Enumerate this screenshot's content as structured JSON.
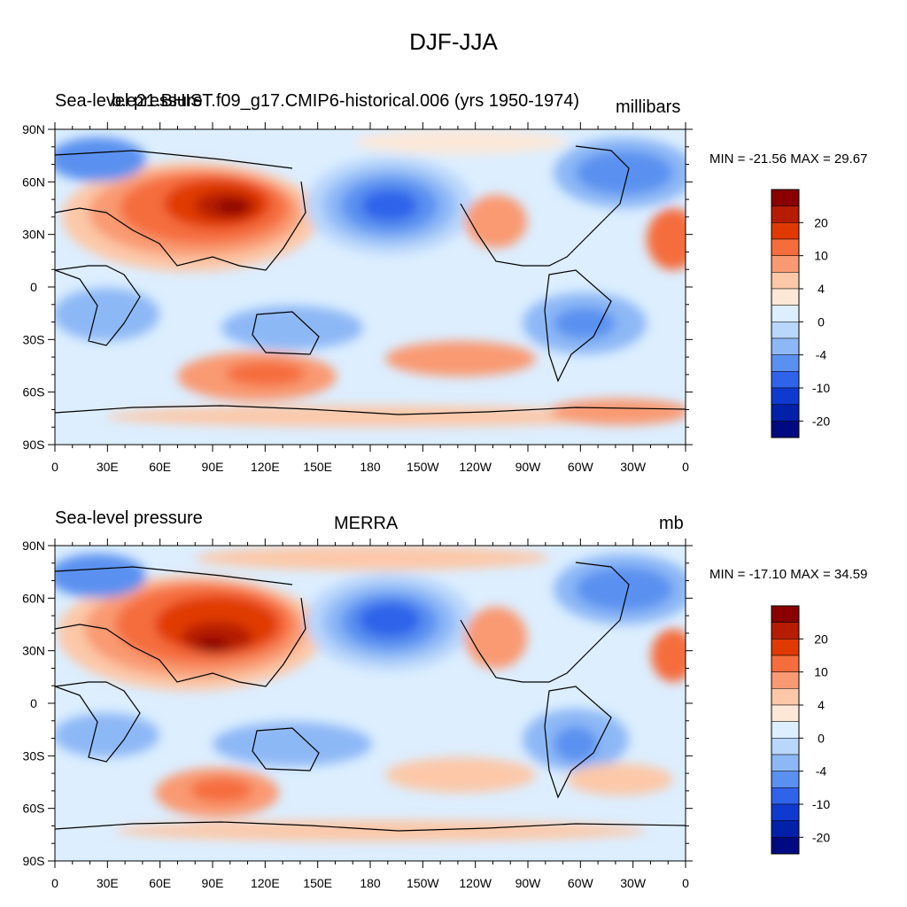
{
  "figure_title": "DJF-JJA",
  "panels": [
    {
      "left_title": "Sea-level pressure",
      "center_title": "b.e21.BHIST.f09_g17.CMIP6-historical.006 (yrs 1950-1974)",
      "right_title": "millibars",
      "minmax": "MIN = -21.56 MAX =  29.67"
    },
    {
      "left_title": "Sea-level pressure",
      "center_title": "MERRA",
      "right_title": "mb",
      "minmax": "MIN = -17.10 MAX =  34.59"
    }
  ],
  "axes": {
    "lon_labels": [
      "0",
      "30E",
      "60E",
      "90E",
      "120E",
      "150E",
      "180",
      "150W",
      "120W",
      "90W",
      "60W",
      "30W",
      "0"
    ],
    "lat_labels": [
      "90N",
      "60N",
      "30N",
      "0",
      "30S",
      "60S",
      "90S"
    ]
  },
  "colorbar": {
    "labels": [
      "20",
      "10",
      "4",
      "0",
      "-4",
      "-10",
      "-20"
    ],
    "colors": [
      "#8a0000",
      "#b51c00",
      "#e03a00",
      "#f56d3c",
      "#f99a72",
      "#fcc8a8",
      "#fde8d8",
      "#dceeff",
      "#b9d6fb",
      "#8db8f6",
      "#5a91f0",
      "#2e63ea",
      "#0f3ad0",
      "#0021a8",
      "#000a80"
    ]
  }
}
